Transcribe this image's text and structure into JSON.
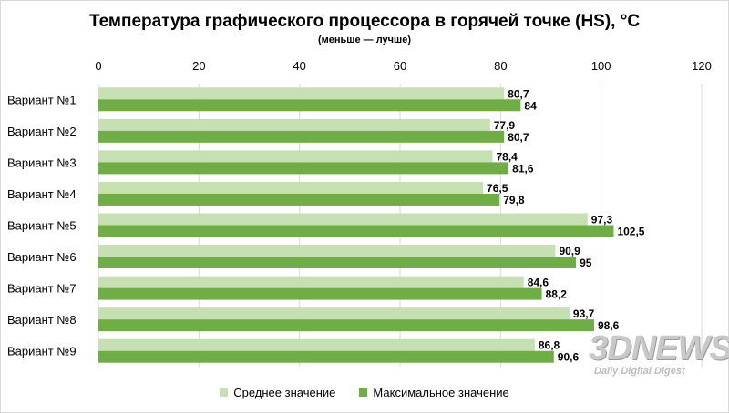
{
  "chart_data": {
    "type": "bar",
    "orientation": "horizontal",
    "title": "Температура графического процессора в горячей точке (HS), °C",
    "subtitle": "(меньше — лучше)",
    "categories": [
      "Вариант №1",
      "Вариант №2",
      "Вариант №3",
      "Вариант №4",
      "Вариант №5",
      "Вариант №6",
      "Вариант №7",
      "Вариант №8",
      "Вариант №9"
    ],
    "series": [
      {
        "name": "Среднее значение",
        "color": "#c6e0b4",
        "values": [
          80.7,
          77.9,
          78.4,
          76.5,
          97.3,
          90.9,
          84.6,
          93.7,
          86.8
        ],
        "labels": [
          "80,7",
          "77,9",
          "78,4",
          "76,5",
          "97,3",
          "90,9",
          "84,6",
          "93,7",
          "86,8"
        ]
      },
      {
        "name": "Максимальное значение",
        "color": "#70ad47",
        "values": [
          84,
          80.7,
          81.6,
          79.8,
          102.5,
          95,
          88.2,
          98.6,
          90.6
        ],
        "labels": [
          "84",
          "80,7",
          "81,6",
          "79,8",
          "102,5",
          "95",
          "88,2",
          "98,6",
          "90,6"
        ]
      }
    ],
    "xlim": [
      0,
      120
    ],
    "xticks": [
      0,
      20,
      40,
      60,
      80,
      100,
      120
    ],
    "axis_position": "top",
    "legend_position": "bottom"
  },
  "watermark": {
    "logo": "3DNEWS",
    "tagline": "Daily Digital Digest"
  }
}
